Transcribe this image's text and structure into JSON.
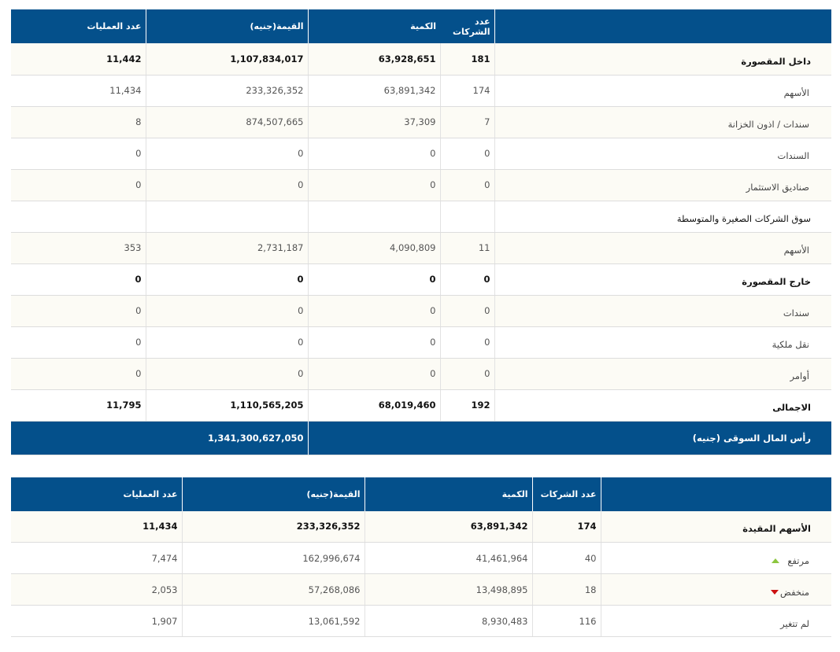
{
  "table1": {
    "headers": {
      "label": "",
      "companies": "عدد الشركات",
      "quantity": "الكمية",
      "value": "القيمة(جنيه)",
      "trades": "عدد العمليات"
    },
    "rows": [
      {
        "label": "داخل المقصورة",
        "companies": "181",
        "quantity": "63,928,651",
        "value": "1,107,834,017",
        "trades": "11,442",
        "style": "main"
      },
      {
        "label": "الأسهم",
        "companies": "174",
        "quantity": "63,891,342",
        "value": "233,326,352",
        "trades": "11,434",
        "style": "sub"
      },
      {
        "label": "سندات / اذون الخزانة",
        "companies": "7",
        "quantity": "37,309",
        "value": "874,507,665",
        "trades": "8",
        "style": "sub"
      },
      {
        "label": "السندات",
        "companies": "0",
        "quantity": "0",
        "value": "0",
        "trades": "0",
        "style": "sub"
      },
      {
        "label": "صناديق الاستثمار",
        "companies": "0",
        "quantity": "0",
        "value": "0",
        "trades": "0",
        "style": "sub"
      },
      {
        "label": "سوق الشركات الصغيرة والمتوسطة",
        "companies": "",
        "quantity": "",
        "value": "",
        "trades": "",
        "style": "section"
      },
      {
        "label": "الأسهم",
        "companies": "11",
        "quantity": "4,090,809",
        "value": "2,731,187",
        "trades": "353",
        "style": "sub"
      },
      {
        "label": "خارج المقصورة",
        "companies": "0",
        "quantity": "0",
        "value": "0",
        "trades": "0",
        "style": "main"
      },
      {
        "label": "سندات",
        "companies": "0",
        "quantity": "0",
        "value": "0",
        "trades": "0",
        "style": "sub"
      },
      {
        "label": "نقل ملكية",
        "companies": "0",
        "quantity": "0",
        "value": "0",
        "trades": "0",
        "style": "sub"
      },
      {
        "label": "أوامر",
        "companies": "0",
        "quantity": "0",
        "value": "0",
        "trades": "0",
        "style": "sub"
      },
      {
        "label": "الاجمالى",
        "companies": "192",
        "quantity": "68,019,460",
        "value": "1,110,565,205",
        "trades": "11,795",
        "style": "main"
      }
    ],
    "market_cap": {
      "label": "رأس المال السوقى (جنيه)",
      "value": "1,341,300,627,050"
    }
  },
  "table2": {
    "headers": {
      "label": "",
      "companies": "عدد الشركات",
      "quantity": "الكمية",
      "value": "القيمة(جنيه)",
      "trades": "عدد العمليات"
    },
    "rows": [
      {
        "label": "الأسهم المقيدة",
        "companies": "174",
        "quantity": "63,891,342",
        "value": "233,326,352",
        "trades": "11,434",
        "style": "main",
        "icon": ""
      },
      {
        "label": "مرتفع",
        "companies": "40",
        "quantity": "41,461,964",
        "value": "162,996,674",
        "trades": "7,474",
        "style": "sub",
        "icon": "up-triangle"
      },
      {
        "label": "منخفض",
        "companies": "18",
        "quantity": "13,498,895",
        "value": "57,268,086",
        "trades": "2,053",
        "style": "sub",
        "icon": "down-triangle"
      },
      {
        "label": "لم تتغير",
        "companies": "116",
        "quantity": "8,930,483",
        "value": "13,061,592",
        "trades": "1,907",
        "style": "sub",
        "icon": ""
      }
    ]
  },
  "colors": {
    "header": "#04508b",
    "up": "#8cc63f",
    "down": "#cc1111",
    "row_alt": "#fcfbf5"
  }
}
